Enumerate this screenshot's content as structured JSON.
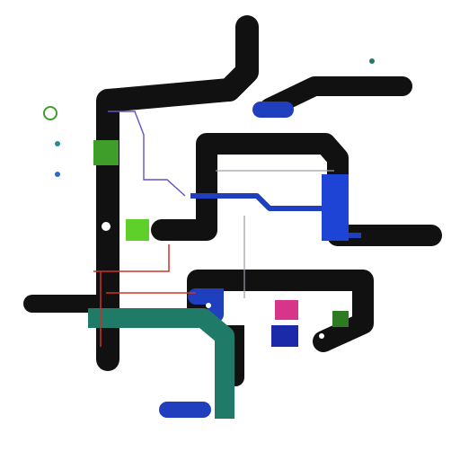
{
  "diagram": {
    "kind": "transit-route-map",
    "colors": {
      "background": "#ffffff",
      "route_black": "#111111",
      "route_blue": "#1f3fbf",
      "route_blue_bright": "#1e44d6",
      "route_teal": "#1f7a68",
      "route_green": "#3f9e2a",
      "route_lime": "#5fcf2a",
      "route_red": "#d0302a",
      "route_magenta": "#d8348a",
      "route_gray": "#9aa0a6"
    },
    "labels": {
      "top_station": "",
      "top_right_label": "",
      "far_right_label": "",
      "right_mid_label": "",
      "left_terminal_label": "",
      "bottom_center_label": "",
      "bottom_right_label": "",
      "notes": []
    },
    "label_colors": {
      "top_left_note": "#4a4fa8",
      "hub_note": "#d0302a",
      "side_note": "#2a8a6a",
      "bottom_note": "#4a4fa8"
    }
  }
}
